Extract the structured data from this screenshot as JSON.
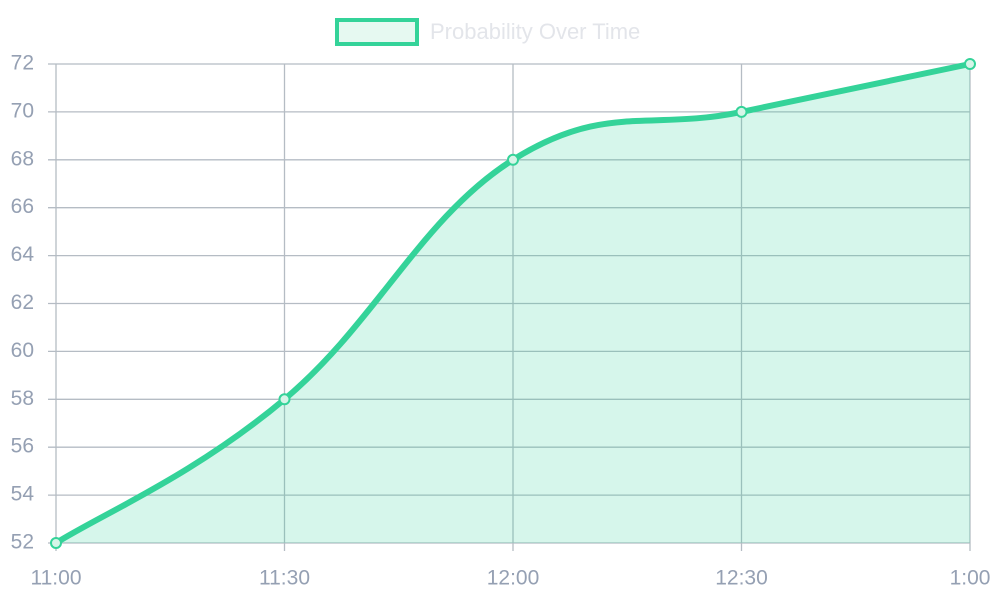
{
  "chart_data": {
    "type": "line",
    "categories": [
      "11:00",
      "11:30",
      "12:00",
      "12:30",
      "1:00"
    ],
    "series": [
      {
        "name": "Probability Over Time",
        "color": "#34d399",
        "values": [
          52,
          58,
          68,
          70,
          72
        ]
      }
    ],
    "ylim": [
      52,
      72
    ],
    "yticks": [
      52,
      54,
      56,
      58,
      60,
      62,
      64,
      66,
      68,
      70,
      72
    ],
    "grid": true,
    "fill": true,
    "legend": "top"
  }
}
